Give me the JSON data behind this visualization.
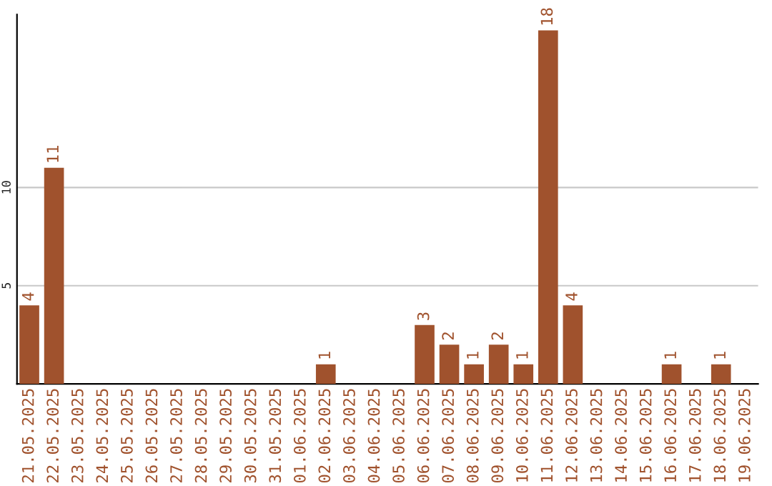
{
  "chart_data": {
    "type": "bar",
    "categories": [
      "21.05.2025",
      "22.05.2025",
      "23.05.2025",
      "24.05.2025",
      "25.05.2025",
      "26.05.2025",
      "27.05.2025",
      "28.05.2025",
      "29.05.2025",
      "30.05.2025",
      "31.05.2025",
      "01.06.2025",
      "02.06.2025",
      "03.06.2025",
      "04.06.2025",
      "05.06.2025",
      "06.06.2025",
      "07.06.2025",
      "08.06.2025",
      "09.06.2025",
      "10.06.2025",
      "11.06.2025",
      "12.06.2025",
      "13.06.2025",
      "14.06.2025",
      "15.06.2025",
      "16.06.2025",
      "17.06.2025",
      "18.06.2025",
      "19.06.2025"
    ],
    "values": [
      4,
      11,
      0,
      0,
      0,
      0,
      0,
      0,
      0,
      0,
      0,
      0,
      1,
      0,
      0,
      0,
      3,
      2,
      1,
      2,
      1,
      18,
      4,
      0,
      0,
      0,
      1,
      0,
      1,
      0
    ],
    "value_labels": [
      "4",
      "11",
      null,
      null,
      null,
      null,
      null,
      null,
      null,
      null,
      null,
      null,
      "1",
      null,
      null,
      null,
      "3",
      "2",
      "1",
      "2",
      "1",
      "18",
      "4",
      null,
      null,
      null,
      "1",
      null,
      "1",
      null
    ],
    "color": "#a0522d",
    "ylim": [
      0,
      18.8
    ],
    "yticks": [
      5,
      10
    ],
    "grid": "y"
  }
}
